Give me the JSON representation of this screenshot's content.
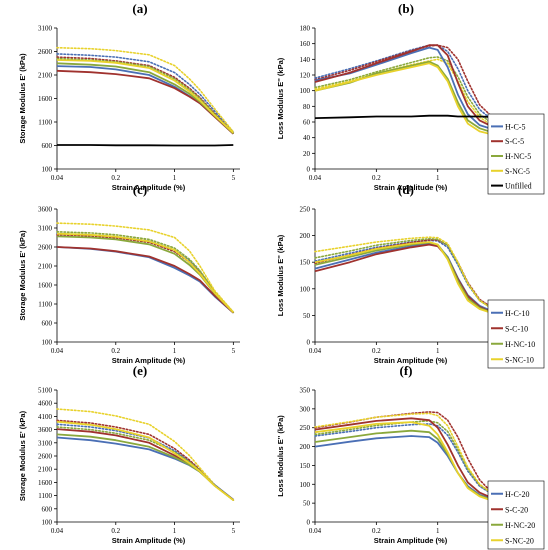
{
  "colors": {
    "H-C": "#4a6fb5",
    "S-C": "#a0322e",
    "H-NC": "#8aa83c",
    "S-NC": "#e8d22c",
    "Unfilled": "#000000"
  },
  "chart_data": [
    {
      "type": "line",
      "title": "(a)",
      "xlabel": "Strain Amplitude (%)",
      "ylabel": "Storage Modulus E' (kPa)",
      "xscale": "log",
      "xlim": [
        0.04,
        6
      ],
      "ylim": [
        100,
        3100
      ],
      "xticks": [
        0.04,
        0.2,
        1,
        5
      ],
      "xtick_labels": [
        "0.04",
        "0.2",
        "1",
        "5"
      ],
      "yticks": [
        100,
        600,
        1100,
        1600,
        2100,
        2600,
        3100
      ],
      "x": [
        0.04,
        0.1,
        0.2,
        0.5,
        1,
        1.5,
        2,
        3,
        5
      ],
      "series": [
        {
          "name": "H-C-5",
          "style": "solid",
          "values": [
            2290,
            2270,
            2220,
            2100,
            1850,
            1650,
            1500,
            1220,
            860
          ]
        },
        {
          "name": "S-C-5",
          "style": "solid",
          "values": [
            2190,
            2160,
            2120,
            2030,
            1820,
            1640,
            1500,
            1210,
            850
          ]
        },
        {
          "name": "H-NC-5",
          "style": "solid",
          "values": [
            2350,
            2320,
            2280,
            2160,
            1900,
            1700,
            1530,
            1230,
            860
          ]
        },
        {
          "name": "S-NC-5",
          "style": "solid",
          "values": [
            2420,
            2400,
            2360,
            2250,
            1980,
            1750,
            1560,
            1240,
            870
          ]
        },
        {
          "name": "Unfilled",
          "style": "solid",
          "values": [
            610,
            610,
            605,
            605,
            600,
            600,
            600,
            600,
            610
          ]
        },
        {
          "name": "",
          "style": "dotted",
          "color_of": "H-C",
          "values": [
            2550,
            2520,
            2480,
            2380,
            2150,
            1900,
            1690,
            1330,
            880
          ]
        },
        {
          "name": "",
          "style": "dotted",
          "color_of": "S-C",
          "values": [
            2480,
            2450,
            2400,
            2300,
            2050,
            1820,
            1620,
            1280,
            860
          ]
        },
        {
          "name": "",
          "style": "dotted",
          "color_of": "H-NC",
          "values": [
            2450,
            2420,
            2380,
            2280,
            2020,
            1790,
            1600,
            1270,
            860
          ]
        },
        {
          "name": "",
          "style": "dotted",
          "color_of": "S-NC",
          "values": [
            2680,
            2660,
            2620,
            2530,
            2300,
            2020,
            1780,
            1380,
            890
          ]
        }
      ]
    },
    {
      "type": "line",
      "title": "(b)",
      "xlabel": "Strain Amplitude (%)",
      "ylabel": "Loss Modulus E'' (kPa)",
      "xscale": "log",
      "xlim": [
        0.04,
        6
      ],
      "ylim": [
        0,
        180
      ],
      "xticks": [
        0.04,
        0.2,
        1,
        5
      ],
      "xtick_labels": [
        "0.04",
        "0.2",
        "1",
        "5"
      ],
      "yticks": [
        0,
        20,
        40,
        60,
        80,
        100,
        120,
        140,
        160,
        180
      ],
      "x": [
        0.04,
        0.1,
        0.2,
        0.5,
        0.8,
        1,
        1.3,
        1.7,
        2.2,
        3,
        5
      ],
      "series": [
        {
          "name": "H-C-5",
          "style": "solid",
          "values": [
            113,
            122,
            133,
            148,
            155,
            152,
            130,
            95,
            70,
            56,
            48
          ]
        },
        {
          "name": "S-C-5",
          "style": "solid",
          "values": [
            111,
            123,
            135,
            150,
            158,
            158,
            145,
            110,
            80,
            62,
            50
          ]
        },
        {
          "name": "H-NC-5",
          "style": "solid",
          "values": [
            100,
            110,
            122,
            132,
            137,
            132,
            115,
            85,
            62,
            52,
            44
          ]
        },
        {
          "name": "S-NC-5",
          "style": "solid",
          "values": [
            100,
            111,
            120,
            130,
            135,
            130,
            112,
            80,
            58,
            48,
            42
          ]
        },
        {
          "name": "Unfilled",
          "style": "solid",
          "values": [
            65,
            66,
            67,
            67,
            68,
            68,
            68,
            67,
            67,
            67,
            66
          ]
        },
        {
          "name": "",
          "style": "dotted",
          "color_of": "H-C",
          "values": [
            116,
            128,
            138,
            152,
            158,
            158,
            150,
            128,
            100,
            76,
            55
          ]
        },
        {
          "name": "",
          "style": "dotted",
          "color_of": "S-C",
          "values": [
            114,
            126,
            137,
            151,
            157,
            158,
            155,
            140,
            112,
            82,
            58
          ]
        },
        {
          "name": "",
          "style": "dotted",
          "color_of": "H-NC",
          "values": [
            104,
            114,
            124,
            136,
            142,
            143,
            138,
            118,
            92,
            70,
            52
          ]
        },
        {
          "name": "",
          "style": "dotted",
          "color_of": "S-NC",
          "values": [
            102,
            112,
            122,
            133,
            138,
            140,
            135,
            112,
            86,
            66,
            50
          ]
        }
      ],
      "legend": [
        "H-C-5",
        "S-C-5",
        "H-NC-5",
        "S-NC-5",
        "Unfilled"
      ],
      "legend_position": "right"
    },
    {
      "type": "line",
      "title": "(c)",
      "xlabel": "Strain Amplitude (%)",
      "ylabel": "Storage Modulus E' (kPa)",
      "xscale": "log",
      "xlim": [
        0.04,
        6
      ],
      "ylim": [
        100,
        3600
      ],
      "xticks": [
        0.04,
        0.2,
        1,
        5
      ],
      "xtick_labels": [
        "0.04",
        "0.2",
        "1",
        "5"
      ],
      "yticks": [
        100,
        600,
        1100,
        1600,
        2100,
        2600,
        3100,
        3600
      ],
      "x": [
        0.04,
        0.1,
        0.2,
        0.5,
        1,
        1.5,
        2,
        3,
        5
      ],
      "series": [
        {
          "name": "H-C-10",
          "style": "solid",
          "values": [
            2600,
            2550,
            2480,
            2330,
            2050,
            1850,
            1690,
            1300,
            870
          ]
        },
        {
          "name": "S-C-10",
          "style": "solid",
          "values": [
            2600,
            2560,
            2490,
            2350,
            2100,
            1890,
            1720,
            1320,
            870
          ]
        },
        {
          "name": "H-NC-10",
          "style": "solid",
          "values": [
            2880,
            2850,
            2800,
            2670,
            2420,
            2130,
            1870,
            1380,
            880
          ]
        },
        {
          "name": "S-NC-10",
          "style": "solid",
          "values": [
            2950,
            2920,
            2870,
            2750,
            2520,
            2200,
            1900,
            1390,
            880
          ]
        },
        {
          "name": "",
          "style": "dotted",
          "color_of": "H-C",
          "values": [
            2950,
            2920,
            2870,
            2760,
            2520,
            2240,
            1950,
            1410,
            880
          ]
        },
        {
          "name": "",
          "style": "dotted",
          "color_of": "S-C",
          "values": [
            2920,
            2890,
            2840,
            2720,
            2480,
            2200,
            1920,
            1400,
            880
          ]
        },
        {
          "name": "",
          "style": "dotted",
          "color_of": "H-NC",
          "values": [
            3000,
            2970,
            2920,
            2800,
            2570,
            2280,
            1980,
            1420,
            880
          ]
        },
        {
          "name": "",
          "style": "dotted",
          "color_of": "S-NC",
          "values": [
            3230,
            3200,
            3150,
            3050,
            2850,
            2500,
            2100,
            1450,
            890
          ]
        }
      ]
    },
    {
      "type": "line",
      "title": "(d)",
      "xlabel": "Strain Amplitude (%)",
      "ylabel": "Loss Modulus E'' (kPa)",
      "xscale": "log",
      "xlim": [
        0.04,
        6
      ],
      "ylim": [
        0,
        250
      ],
      "xticks": [
        0.04,
        0.2,
        1,
        5
      ],
      "xtick_labels": [
        "0.04",
        "0.2",
        "1",
        "5"
      ],
      "yticks": [
        0,
        50,
        100,
        150,
        200,
        250
      ],
      "x": [
        0.04,
        0.1,
        0.2,
        0.5,
        0.8,
        1,
        1.3,
        1.7,
        2.2,
        3,
        5
      ],
      "series": [
        {
          "name": "H-C-10",
          "style": "solid",
          "values": [
            138,
            155,
            168,
            180,
            185,
            182,
            160,
            120,
            88,
            68,
            52
          ]
        },
        {
          "name": "S-C-10",
          "style": "solid",
          "values": [
            133,
            150,
            165,
            178,
            183,
            180,
            158,
            118,
            86,
            66,
            50
          ]
        },
        {
          "name": "H-NC-10",
          "style": "solid",
          "values": [
            145,
            160,
            172,
            183,
            187,
            183,
            158,
            115,
            82,
            64,
            50
          ]
        },
        {
          "name": "S-NC-10",
          "style": "solid",
          "values": [
            150,
            163,
            175,
            185,
            188,
            183,
            155,
            110,
            78,
            62,
            50
          ]
        },
        {
          "name": "",
          "style": "dotted",
          "color_of": "H-C",
          "values": [
            152,
            167,
            178,
            188,
            191,
            190,
            178,
            145,
            108,
            78,
            55
          ]
        },
        {
          "name": "",
          "style": "dotted",
          "color_of": "S-C",
          "values": [
            148,
            164,
            176,
            187,
            192,
            192,
            182,
            150,
            112,
            80,
            56
          ]
        },
        {
          "name": "",
          "style": "dotted",
          "color_of": "H-NC",
          "values": [
            158,
            171,
            182,
            191,
            194,
            193,
            182,
            148,
            110,
            78,
            54
          ]
        },
        {
          "name": "",
          "style": "dotted",
          "color_of": "S-NC",
          "values": [
            170,
            180,
            188,
            195,
            197,
            196,
            185,
            150,
            110,
            78,
            54
          ]
        }
      ],
      "legend": [
        "H-C-10",
        "S-C-10",
        "H-NC-10",
        "S-NC-10"
      ],
      "legend_position": "right"
    },
    {
      "type": "line",
      "title": "(e)",
      "xlabel": "Strain Amplitude (%)",
      "ylabel": "Storage Modulus E' (kPa)",
      "xscale": "log",
      "xlim": [
        0.04,
        6
      ],
      "ylim": [
        100,
        5100
      ],
      "xticks": [
        0.04,
        0.2,
        1,
        5
      ],
      "xtick_labels": [
        "0.04",
        "0.2",
        "1",
        "5"
      ],
      "yticks": [
        100,
        600,
        1100,
        1600,
        2100,
        2600,
        3100,
        3600,
        4100,
        4600,
        5100
      ],
      "x": [
        0.04,
        0.1,
        0.2,
        0.5,
        1,
        1.5,
        2,
        3,
        5
      ],
      "series": [
        {
          "name": "H-C-20",
          "style": "solid",
          "values": [
            3300,
            3200,
            3070,
            2850,
            2500,
            2250,
            2000,
            1500,
            950
          ]
        },
        {
          "name": "S-C-20",
          "style": "solid",
          "values": [
            3620,
            3520,
            3380,
            3100,
            2620,
            2300,
            2010,
            1480,
            940
          ]
        },
        {
          "name": "H-NC-20",
          "style": "solid",
          "values": [
            3420,
            3330,
            3200,
            2950,
            2550,
            2270,
            2000,
            1480,
            930
          ]
        },
        {
          "name": "S-NC-20",
          "style": "solid",
          "values": [
            3900,
            3780,
            3620,
            3300,
            2700,
            2330,
            2020,
            1470,
            930
          ]
        },
        {
          "name": "",
          "style": "dotted",
          "color_of": "H-C",
          "values": [
            3800,
            3700,
            3560,
            3280,
            2800,
            2400,
            2060,
            1490,
            930
          ]
        },
        {
          "name": "",
          "style": "dotted",
          "color_of": "S-C",
          "values": [
            3950,
            3850,
            3700,
            3420,
            2880,
            2450,
            2080,
            1500,
            930
          ]
        },
        {
          "name": "",
          "style": "dotted",
          "color_of": "H-NC",
          "values": [
            3700,
            3600,
            3460,
            3200,
            2750,
            2380,
            2050,
            1480,
            930
          ]
        },
        {
          "name": "",
          "style": "dotted",
          "color_of": "S-NC",
          "values": [
            4380,
            4280,
            4120,
            3800,
            3150,
            2620,
            2150,
            1510,
            930
          ]
        }
      ]
    },
    {
      "type": "line",
      "title": "(f)",
      "xlabel": "Strain Amplitude (%)",
      "ylabel": "Loss Modulus E'' (kPa)",
      "xscale": "log",
      "xlim": [
        0.04,
        6
      ],
      "ylim": [
        0,
        350
      ],
      "xticks": [
        0.04,
        0.2,
        1,
        5
      ],
      "xtick_labels": [
        "0.04",
        "0.2",
        "1",
        "5"
      ],
      "yticks": [
        0,
        50,
        100,
        150,
        200,
        250,
        300,
        350
      ],
      "x": [
        0.04,
        0.1,
        0.2,
        0.5,
        0.8,
        1,
        1.3,
        1.7,
        2.2,
        3,
        5
      ],
      "series": [
        {
          "name": "H-C-20",
          "style": "solid",
          "values": [
            200,
            213,
            222,
            228,
            225,
            210,
            175,
            130,
            95,
            72,
            55
          ]
        },
        {
          "name": "S-C-20",
          "style": "solid",
          "values": [
            245,
            258,
            268,
            275,
            270,
            250,
            205,
            150,
            105,
            78,
            56
          ]
        },
        {
          "name": "H-NC-20",
          "style": "solid",
          "values": [
            212,
            225,
            235,
            242,
            238,
            220,
            180,
            130,
            92,
            70,
            52
          ]
        },
        {
          "name": "S-NC-20",
          "style": "solid",
          "values": [
            238,
            250,
            260,
            265,
            255,
            232,
            185,
            130,
            90,
            68,
            50
          ]
        },
        {
          "name": "",
          "style": "dotted",
          "color_of": "H-C",
          "values": [
            228,
            240,
            250,
            258,
            260,
            255,
            230,
            185,
            135,
            95,
            62
          ]
        },
        {
          "name": "",
          "style": "dotted",
          "color_of": "S-C",
          "values": [
            250,
            265,
            278,
            288,
            292,
            290,
            270,
            225,
            168,
            112,
            58
          ]
        },
        {
          "name": "",
          "style": "dotted",
          "color_of": "H-NC",
          "values": [
            232,
            245,
            256,
            265,
            268,
            263,
            240,
            192,
            140,
            98,
            62
          ]
        },
        {
          "name": "",
          "style": "dotted",
          "color_of": "S-NC",
          "values": [
            252,
            266,
            278,
            286,
            288,
            282,
            255,
            200,
            145,
            100,
            62
          ]
        }
      ],
      "legend": [
        "H-C-20",
        "S-C-20",
        "H-NC-20",
        "S-NC-20"
      ],
      "legend_position": "right"
    }
  ]
}
